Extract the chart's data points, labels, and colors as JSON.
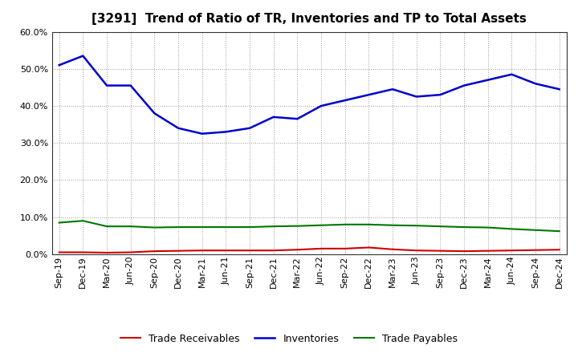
{
  "title": "[3291]  Trend of Ratio of TR, Inventories and TP to Total Assets",
  "x_labels": [
    "Sep-19",
    "Dec-19",
    "Mar-20",
    "Jun-20",
    "Sep-20",
    "Dec-20",
    "Mar-21",
    "Jun-21",
    "Sep-21",
    "Dec-21",
    "Mar-22",
    "Jun-22",
    "Sep-22",
    "Dec-22",
    "Mar-23",
    "Jun-23",
    "Sep-23",
    "Dec-23",
    "Mar-24",
    "Jun-24",
    "Sep-24",
    "Dec-24"
  ],
  "trade_receivables": [
    0.005,
    0.005,
    0.004,
    0.005,
    0.008,
    0.009,
    0.01,
    0.01,
    0.01,
    0.01,
    0.012,
    0.015,
    0.015,
    0.018,
    0.013,
    0.01,
    0.009,
    0.008,
    0.009,
    0.01,
    0.011,
    0.012
  ],
  "inventories": [
    0.51,
    0.535,
    0.455,
    0.455,
    0.38,
    0.34,
    0.325,
    0.33,
    0.34,
    0.37,
    0.365,
    0.4,
    0.415,
    0.43,
    0.445,
    0.425,
    0.43,
    0.455,
    0.47,
    0.485,
    0.46,
    0.445
  ],
  "trade_payables": [
    0.085,
    0.09,
    0.075,
    0.075,
    0.072,
    0.073,
    0.073,
    0.073,
    0.073,
    0.075,
    0.076,
    0.078,
    0.08,
    0.08,
    0.078,
    0.077,
    0.075,
    0.073,
    0.072,
    0.068,
    0.065,
    0.062
  ],
  "tr_color": "#cc0000",
  "inv_color": "#0000cc",
  "tp_color": "#007700",
  "ylim": [
    0.0,
    0.6
  ],
  "yticks": [
    0.0,
    0.1,
    0.2,
    0.3,
    0.4,
    0.5,
    0.6
  ],
  "bg_color": "#ffffff",
  "grid_color": "#999999",
  "legend_labels": [
    "Trade Receivables",
    "Inventories",
    "Trade Payables"
  ],
  "title_fontsize": 11,
  "tick_fontsize": 8,
  "legend_fontsize": 9
}
